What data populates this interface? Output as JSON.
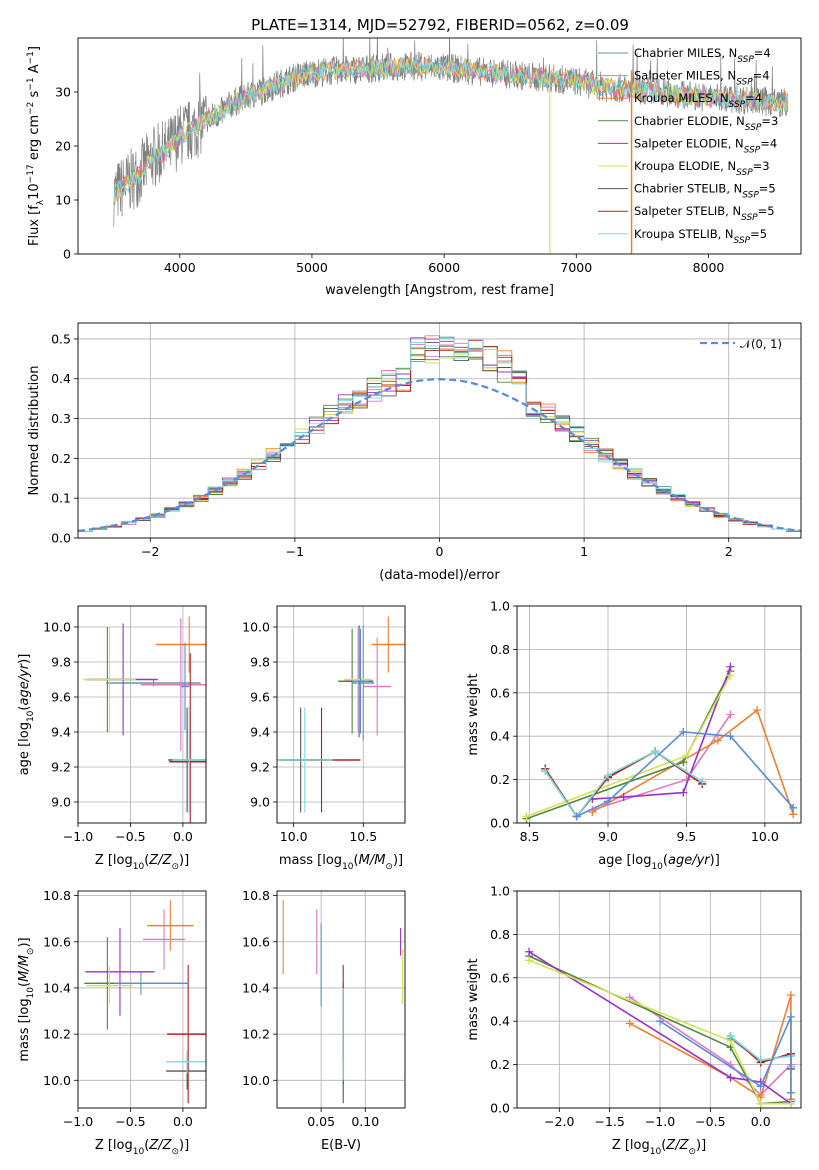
{
  "figure": {
    "title": "PLATE=1314, MJD=52792, FIBERID=0562, z=0.09"
  },
  "series": [
    {
      "name": "Chabrier MILES, N$_{SSP}$=4",
      "label_main": "Chabrier MILES, N",
      "label_sub": "SSP",
      "label_end": "=4",
      "color": "#5f9ea0"
    },
    {
      "name": "Salpeter MILES, N$_{SSP}$=4",
      "label_main": "Salpeter MILES, N",
      "label_sub": "SSP",
      "label_end": "=4",
      "color": "#e377c2"
    },
    {
      "name": "Kroupa MILES, N$_{SSP}$=4",
      "label_main": "Kroupa MILES, N",
      "label_sub": "SSP",
      "label_end": "=4",
      "color": "#f08030"
    },
    {
      "name": "Chabrier ELODIE, N$_{SSP}$=3",
      "label_main": "Chabrier ELODIE, N",
      "label_sub": "SSP",
      "label_end": "=3",
      "color": "#4e8a3a"
    },
    {
      "name": "Salpeter ELODIE, N$_{SSP}$=4",
      "label_main": "Salpeter ELODIE, N",
      "label_sub": "SSP",
      "label_end": "=4",
      "color": "#9932cc"
    },
    {
      "name": "Kroupa ELODIE, N$_{SSP}$=3",
      "label_main": "Kroupa ELODIE, N",
      "label_sub": "SSP",
      "label_end": "=3",
      "color": "#d4e157"
    },
    {
      "name": "Chabrier STELIB, N$_{SSP}$=5",
      "label_main": "Chabrier STELIB, N",
      "label_sub": "SSP",
      "label_end": "=5",
      "color": "#555555"
    },
    {
      "name": "Salpeter STELIB, N$_{SSP}$=5",
      "label_main": "Salpeter STELIB, N",
      "label_sub": "SSP",
      "label_end": "=5",
      "color": "#b22222"
    },
    {
      "name": "Kroupa STELIB, N$_{SSP}$=5",
      "label_main": "Kroupa STELIB, N",
      "label_sub": "SSP",
      "label_end": "=5",
      "color": "#7fd8e0"
    }
  ],
  "extra_colors": {
    "data": "#808080",
    "normal": "#5b8bd9",
    "blue": "#5b8bd9"
  },
  "chart_data": [
    {
      "id": "spectrum",
      "type": "line",
      "title": "PLATE=1314, MJD=52792, FIBERID=0562, z=0.09",
      "xlabel": "wavelength [Angstrom, rest frame]",
      "ylabel": "Flux [f$_\\lambda$10$^{-17}$ erg cm$^{-2}$ s$^{-1}$ A$^{-1}$]",
      "xlim": [
        3230,
        8700
      ],
      "ylim": [
        0,
        40
      ],
      "xticks": [
        4000,
        5000,
        6000,
        7000,
        8000
      ],
      "yticks": [
        0,
        10,
        20,
        30
      ],
      "grid": false,
      "legend": "top-right",
      "continuum": {
        "x": [
          3500,
          3600,
          3700,
          3800,
          3900,
          4000,
          4100,
          4200,
          4300,
          4400,
          4500,
          4600,
          4700,
          4800,
          4900,
          5000,
          5200,
          5400,
          5600,
          5800,
          6000,
          6200,
          6400,
          6600,
          6800,
          7000,
          7200,
          7400,
          7600,
          7800,
          8000,
          8200,
          8400,
          8600
        ],
        "y": [
          11,
          13,
          15,
          18,
          19,
          22,
          23,
          25,
          26,
          28,
          29,
          30,
          31,
          32,
          33,
          33.5,
          34,
          34.3,
          34.6,
          34.8,
          34.5,
          34,
          33.5,
          33,
          32.5,
          32,
          31,
          30.5,
          30,
          29.5,
          29,
          28.7,
          28.3,
          28
        ]
      },
      "data_range": [
        3500,
        8600
      ]
    },
    {
      "id": "residuals",
      "type": "step",
      "xlabel": "(data-model)/error",
      "ylabel": "Normed distribution",
      "xlim": [
        -2.5,
        2.5
      ],
      "ylim": [
        0,
        0.54
      ],
      "xticks": [
        -2,
        -1,
        0,
        1,
        2
      ],
      "yticks": [
        0.0,
        0.1,
        0.2,
        0.3,
        0.4,
        0.5
      ],
      "grid": true,
      "legend": "top-right",
      "normal_label": "$\\mathcal{N}(0,1)$",
      "normal_label_text": "𝒩(0, 1)",
      "bin_width": 0.1
    },
    {
      "id": "age_vs_Z",
      "type": "errorbar",
      "xlabel": "Z [log$_{10}$(Z/Z$_\\odot$)]",
      "ylabel": "age [log$_{10}$(age/yr)]",
      "xlim": [
        -1.0,
        0.22
      ],
      "ylim": [
        8.88,
        10.12
      ],
      "xticks": [
        -1.0,
        -0.5,
        0.0
      ],
      "yticks": [
        9.0,
        9.2,
        9.4,
        9.6,
        9.8,
        10.0
      ],
      "grid": true,
      "points": [
        {
          "series": 0,
          "x": -0.28,
          "y": 9.68,
          "xerr": 0.45,
          "yerr": 0.02
        },
        {
          "series": 1,
          "x": -0.02,
          "y": 9.67,
          "xerr": 0.38,
          "yerr": 0.38
        },
        {
          "series": 2,
          "x": 0.06,
          "y": 9.9,
          "xerr": 0.32,
          "yerr": 0.16
        },
        {
          "series": 3,
          "x": -0.72,
          "y": 9.7,
          "xerr": 0.2,
          "yerr": 0.3
        },
        {
          "series": 4,
          "x": -0.57,
          "y": 9.7,
          "xerr": 0.33,
          "yerr": 0.32
        },
        {
          "series": 5,
          "x": -0.7,
          "y": 9.7,
          "xerr": 0.25,
          "yerr": 0.3
        },
        {
          "series": 6,
          "x": 0.04,
          "y": 9.24,
          "xerr": 0.18,
          "yerr": 0.3
        },
        {
          "series": 7,
          "x": 0.07,
          "y": 9.23,
          "xerr": 0.2,
          "yerr": 0.62
        },
        {
          "series": 8,
          "x": 0.06,
          "y": 9.24,
          "xerr": 0.16,
          "yerr": 0.3
        },
        {
          "series": 10,
          "x": 0.02,
          "y": 9.66,
          "xerr": 0.04,
          "yerr": 0.25
        }
      ]
    },
    {
      "id": "age_vs_mass",
      "type": "errorbar",
      "xlabel": "mass [log$_{10}$(M/M$_\\odot$)]",
      "ylabel": "",
      "xlim": [
        9.88,
        10.8
      ],
      "ylim": [
        8.88,
        10.12
      ],
      "xticks": [
        10.0,
        10.5
      ],
      "yticks": [
        9.0,
        9.2,
        9.4,
        9.6,
        9.8,
        10.0
      ],
      "grid": true,
      "points": [
        {
          "series": 0,
          "x": 10.5,
          "y": 9.68,
          "xerr": 0.08,
          "yerr": 0.33
        },
        {
          "series": 1,
          "x": 10.6,
          "y": 9.66,
          "xerr": 0.1,
          "yerr": 0.28
        },
        {
          "series": 2,
          "x": 10.68,
          "y": 9.9,
          "xerr": 0.12,
          "yerr": 0.16
        },
        {
          "series": 3,
          "x": 10.42,
          "y": 9.69,
          "xerr": 0.1,
          "yerr": 0.3
        },
        {
          "series": 4,
          "x": 10.47,
          "y": 9.69,
          "xerr": 0.1,
          "yerr": 0.32
        },
        {
          "series": 5,
          "x": 10.46,
          "y": 9.7,
          "xerr": 0.1,
          "yerr": 0.3
        },
        {
          "series": 6,
          "x": 10.05,
          "y": 9.24,
          "xerr": 0.18,
          "yerr": 0.3
        },
        {
          "series": 7,
          "x": 10.2,
          "y": 9.24,
          "xerr": 0.28,
          "yerr": 0.3
        },
        {
          "series": 8,
          "x": 10.08,
          "y": 9.24,
          "xerr": 0.2,
          "yerr": 0.3
        },
        {
          "series": 10,
          "x": 10.48,
          "y": 9.69,
          "xerr": 0.06,
          "yerr": 0.3
        }
      ]
    },
    {
      "id": "mass_weight_vs_age",
      "type": "line",
      "xlabel": "age [log$_{10}$(age/yr)]",
      "ylabel": "mass weight",
      "xlim": [
        8.42,
        10.23
      ],
      "ylim": [
        0.0,
        1.0
      ],
      "xticks": [
        8.5,
        9.0,
        9.5,
        10.0
      ],
      "yticks": [
        0.0,
        0.2,
        0.4,
        0.6,
        0.8,
        1.0
      ],
      "grid": true,
      "series": [
        {
          "series": 0,
          "x": [
            8.6,
            8.8,
            9.0,
            9.3,
            9.6
          ],
          "values": [
            0.24,
            0.03,
            0.21,
            0.33,
            0.19
          ]
        },
        {
          "series": 1,
          "x": [
            8.9,
            9.5,
            9.78
          ],
          "values": [
            0.06,
            0.2,
            0.5
          ]
        },
        {
          "series": 2,
          "x": [
            8.9,
            9.7,
            9.95,
            10.18
          ],
          "values": [
            0.05,
            0.38,
            0.52,
            0.04
          ]
        },
        {
          "series": 3,
          "x": [
            8.48,
            9.48,
            9.78
          ],
          "values": [
            0.02,
            0.28,
            0.7
          ]
        },
        {
          "series": 4,
          "x": [
            8.9,
            9.1,
            9.48,
            9.78
          ],
          "values": [
            0.11,
            0.12,
            0.14,
            0.72
          ]
        },
        {
          "series": 5,
          "x": [
            8.48,
            9.5,
            9.78
          ],
          "values": [
            0.03,
            0.31,
            0.68
          ]
        },
        {
          "series": 6,
          "x": [
            8.6,
            8.8,
            9.0,
            9.3,
            9.6
          ],
          "values": [
            0.25,
            0.03,
            0.21,
            0.33,
            0.18
          ]
        },
        {
          "series": 7,
          "x": [
            8.6,
            8.8,
            9.0,
            9.3,
            9.6
          ],
          "values": [
            0.25,
            0.03,
            0.21,
            0.33,
            0.18
          ]
        },
        {
          "series": 8,
          "x": [
            8.6,
            8.8,
            9.0,
            9.3,
            9.6
          ],
          "values": [
            0.24,
            0.03,
            0.22,
            0.33,
            0.19
          ]
        },
        {
          "series": 10,
          "x": [
            8.8,
            9.0,
            9.48,
            9.78,
            10.18
          ],
          "values": [
            0.03,
            0.1,
            0.42,
            0.4,
            0.07
          ]
        }
      ]
    },
    {
      "id": "mass_vs_Z",
      "type": "errorbar",
      "xlabel": "Z [log$_{10}$(Z/Z$_\\odot$)]",
      "ylabel": "mass [log$_{10}$(M/M$_\\odot$)]",
      "xlim": [
        -1.0,
        0.22
      ],
      "ylim": [
        9.88,
        10.82
      ],
      "xticks": [
        -1.0,
        -0.5,
        0.0
      ],
      "yticks": [
        10.0,
        10.2,
        10.4,
        10.6,
        10.8
      ],
      "grid": true,
      "points": [
        {
          "series": 0,
          "x": -0.4,
          "y": 10.42,
          "xerr": 0.45,
          "yerr": 0.05
        },
        {
          "series": 1,
          "x": -0.18,
          "y": 10.61,
          "xerr": 0.2,
          "yerr": 0.13
        },
        {
          "series": 2,
          "x": -0.12,
          "y": 10.67,
          "xerr": 0.22,
          "yerr": 0.11
        },
        {
          "series": 3,
          "x": -0.72,
          "y": 10.42,
          "xerr": 0.22,
          "yerr": 0.2
        },
        {
          "series": 4,
          "x": -0.6,
          "y": 10.47,
          "xerr": 0.33,
          "yerr": 0.19
        },
        {
          "series": 5,
          "x": -0.7,
          "y": 10.41,
          "xerr": 0.22,
          "yerr": 0.08
        },
        {
          "series": 6,
          "x": 0.04,
          "y": 10.04,
          "xerr": 0.2,
          "yerr": 0.08
        },
        {
          "series": 7,
          "x": 0.05,
          "y": 10.2,
          "xerr": 0.2,
          "yerr": 0.3
        },
        {
          "series": 8,
          "x": 0.04,
          "y": 10.08,
          "xerr": 0.2,
          "yerr": 0.05
        },
        {
          "series": 10,
          "x": -0.3,
          "y": 10.42,
          "xerr": 0.35,
          "yerr": 0.0
        }
      ]
    },
    {
      "id": "mass_vs_EBV",
      "type": "errorbar",
      "xlabel": "E(B-V)",
      "ylabel": "",
      "xlim": [
        0.0,
        0.145
      ],
      "ylim": [
        9.88,
        10.82
      ],
      "xticks": [
        0.05,
        0.1
      ],
      "yticks": [
        10.0,
        10.2,
        10.4,
        10.6,
        10.8
      ],
      "grid": true,
      "points": [
        {
          "series": 0,
          "x": 0.075,
          "y": 10.2,
          "xerr": 0,
          "yerr": 0.22
        },
        {
          "series": 1,
          "x": 0.045,
          "y": 10.6,
          "xerr": 0,
          "yerr": 0.14
        },
        {
          "series": 2,
          "x": 0.007,
          "y": 10.62,
          "xerr": 0,
          "yerr": 0.16
        },
        {
          "series": 3,
          "x": 0.075,
          "y": 10.25,
          "xerr": 0,
          "yerr": 0.17
        },
        {
          "series": 4,
          "x": 0.14,
          "y": 10.6,
          "xerr": 0,
          "yerr": 0.06
        },
        {
          "series": 5,
          "x": 0.142,
          "y": 10.45,
          "xerr": 0,
          "yerr": 0.12
        },
        {
          "series": 6,
          "x": 0.075,
          "y": 10.1,
          "xerr": 0,
          "yerr": 0.2
        },
        {
          "series": 7,
          "x": 0.075,
          "y": 10.3,
          "xerr": 0,
          "yerr": 0.2
        },
        {
          "series": 8,
          "x": 0.075,
          "y": 10.2,
          "xerr": 0,
          "yerr": 0.2
        },
        {
          "series": 10,
          "x": 0.05,
          "y": 10.5,
          "xerr": 0,
          "yerr": 0.18
        }
      ]
    },
    {
      "id": "mass_weight_vs_Z",
      "type": "line",
      "xlabel": "Z [log$_{10}$(Z/Z$_\\odot$)]",
      "ylabel": "mass weight",
      "xlim": [
        -2.42,
        0.4
      ],
      "ylim": [
        0.0,
        1.0
      ],
      "xticks": [
        -2.0,
        -1.5,
        -1.0,
        -0.5,
        0.0
      ],
      "yticks": [
        0.0,
        0.2,
        0.4,
        0.6,
        0.8,
        1.0
      ],
      "grid": true,
      "series": [
        {
          "series": 0,
          "x": [
            -0.3,
            0.0,
            0.3,
            0.3
          ],
          "values": [
            0.32,
            0.22,
            0.24,
            0.19
          ]
        },
        {
          "series": 1,
          "x": [
            -1.3,
            -0.3,
            0.0,
            0.3
          ],
          "values": [
            0.51,
            0.2,
            0.06,
            0.2
          ]
        },
        {
          "series": 2,
          "x": [
            -1.3,
            -0.3,
            0.0,
            0.3,
            0.3
          ],
          "values": [
            0.39,
            0.14,
            0.05,
            0.52,
            0.04
          ]
        },
        {
          "series": 3,
          "x": [
            -2.3,
            -0.3,
            0.0,
            0.3
          ],
          "values": [
            0.7,
            0.28,
            0.02,
            0.03
          ]
        },
        {
          "series": 4,
          "x": [
            -2.3,
            -0.3,
            0.0,
            0.3
          ],
          "values": [
            0.72,
            0.14,
            0.12,
            0.02
          ]
        },
        {
          "series": 5,
          "x": [
            -2.3,
            -0.3,
            0.0,
            0.3
          ],
          "values": [
            0.68,
            0.31,
            0.02,
            0.02
          ]
        },
        {
          "series": 6,
          "x": [
            -0.3,
            0.0,
            0.3,
            0.3
          ],
          "values": [
            0.33,
            0.21,
            0.25,
            0.18
          ]
        },
        {
          "series": 7,
          "x": [
            -0.3,
            0.0,
            0.3
          ],
          "values": [
            0.33,
            0.21,
            0.25
          ]
        },
        {
          "series": 8,
          "x": [
            -0.3,
            0.0,
            0.3,
            0.3
          ],
          "values": [
            0.33,
            0.22,
            0.24,
            0.19
          ]
        },
        {
          "series": 10,
          "x": [
            -1.0,
            0.0,
            0.3,
            0.3
          ],
          "values": [
            0.4,
            0.1,
            0.42,
            0.07
          ]
        }
      ]
    }
  ]
}
